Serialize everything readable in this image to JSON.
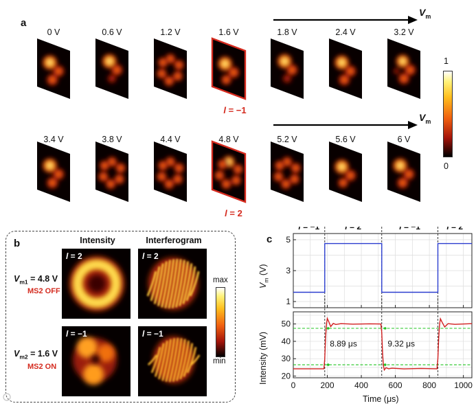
{
  "panel_a": {
    "letter": "a",
    "vm_arrow_label": "V",
    "vm_arrow_sub": "m",
    "row1_voltages": [
      "0 V",
      "0.6 V",
      "1.2 V",
      "1.6 V",
      "1.8 V",
      "2.4 V",
      "3.2 V"
    ],
    "row2_voltages": [
      "3.4 V",
      "3.8 V",
      "4.4 V",
      "4.8 V",
      "5.2 V",
      "5.6 V",
      "6 V"
    ],
    "row1_highlight_label_l": "l",
    "row1_highlight_label_val": " = −1",
    "row2_highlight_label_l": "l",
    "row2_highlight_label_val": " = 2",
    "colorbar_max": "1",
    "colorbar_min": "0"
  },
  "panel_b": {
    "letter": "b",
    "header_intensity": "Intensity",
    "header_interferogram": "Interferogram",
    "row1_vm_label": "V",
    "row1_vm_sub": "m1",
    "row1_vm_value": " = 4.8 V",
    "row1_status": "MS2 OFF",
    "row2_vm_label": "V",
    "row2_vm_sub": "m2",
    "row2_vm_value": " = 1.6 V",
    "row2_status": "MS2 ON",
    "tag_row1_l": "l",
    "tag_row1_val": " = 2",
    "tag_row2_l": "l",
    "tag_row2_val": " = −1",
    "colorbar_max": "max",
    "colorbar_min": "min"
  },
  "panel_c": {
    "letter": "c",
    "segment_labels": [
      "l = −1",
      "l = 2",
      "l = −1",
      "l = 2"
    ],
    "top_ylabel": "V",
    "top_ylabel_sub": "m",
    "top_ylabel_unit": " (V)",
    "bottom_ylabel": "Intensity (mV)",
    "xlabel": "Time (μs)",
    "annot_rise": "8.89 μs",
    "annot_fall": "9.32 μs"
  },
  "chart_data": [
    {
      "type": "line",
      "name_ref": "panel_c_top",
      "xlabel": "",
      "ylabel": "Vm (V)",
      "xlim": [
        0,
        1050
      ],
      "ylim": [
        0.6,
        5.4
      ],
      "yticks": [
        1,
        3,
        5
      ],
      "xticks": [
        0,
        200,
        400,
        600,
        800,
        1000
      ],
      "grid": true,
      "series": [
        {
          "color": "#2a3ccf",
          "x": [
            0,
            185,
            185,
            520,
            520,
            850,
            850,
            1050
          ],
          "y": [
            1.6,
            1.6,
            4.75,
            4.75,
            1.6,
            1.6,
            4.75,
            4.75
          ]
        }
      ],
      "vlines": [
        185,
        520,
        850
      ]
    },
    {
      "type": "line",
      "name_ref": "panel_c_bottom",
      "xlabel": "Time (μs)",
      "ylabel": "Intensity (mV)",
      "xlim": [
        0,
        1050
      ],
      "ylim": [
        19,
        57
      ],
      "yticks": [
        20,
        30,
        40,
        50
      ],
      "xticks": [
        0,
        200,
        400,
        600,
        800,
        1000
      ],
      "grid": true,
      "reference_lines": [
        47.5,
        26.5
      ],
      "series": [
        {
          "color": "#d21f1f",
          "x": [
            0,
            180,
            185,
            190,
            195,
            200,
            210,
            220,
            235,
            250,
            280,
            350,
            450,
            515,
            520,
            525,
            530,
            535,
            545,
            560,
            580,
            650,
            750,
            845,
            850,
            855,
            860,
            865,
            875,
            890,
            910,
            950,
            1050
          ],
          "y": [
            24.2,
            24.2,
            30,
            42,
            50,
            53.2,
            51,
            48.5,
            50.3,
            49.7,
            50.2,
            49.9,
            50.1,
            50,
            45,
            33,
            26,
            23.5,
            24.8,
            24.2,
            24.5,
            24.1,
            24.4,
            24.2,
            30,
            42,
            50,
            53,
            51,
            48.3,
            50.2,
            49.8,
            50.2
          ]
        }
      ],
      "vlines": [
        185,
        520,
        850
      ],
      "annotations": [
        "8.89 μs",
        "9.32 μs"
      ]
    }
  ]
}
